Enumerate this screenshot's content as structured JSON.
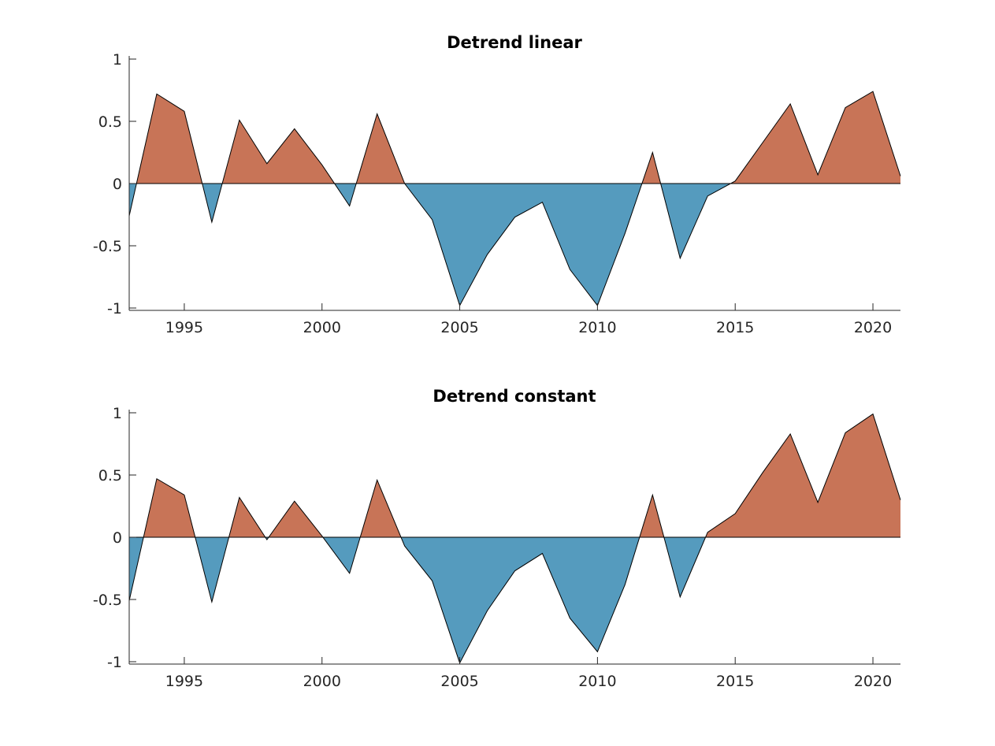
{
  "colors": {
    "positive": "#c87457",
    "negative": "#559bbe"
  },
  "chart_data": [
    {
      "type": "area",
      "title": "Detrend linear",
      "xlabel": "",
      "ylabel": "",
      "xlim": [
        1993,
        2021
      ],
      "ylim": [
        -1,
        1
      ],
      "xticks": [
        1995,
        2000,
        2005,
        2010,
        2015,
        2020
      ],
      "yticks": [
        -1,
        -0.5,
        0,
        0.5,
        1
      ],
      "ytick_labels": [
        "-1",
        "-0.5",
        "0",
        "0.5",
        "1"
      ],
      "x": [
        1993,
        1994,
        1995,
        1996,
        1997,
        1998,
        1999,
        2000,
        2001,
        2002,
        2003,
        2004,
        2005,
        2006,
        2007,
        2008,
        2009,
        2010,
        2011,
        2012,
        2013,
        2014,
        2015,
        2016,
        2017,
        2018,
        2019,
        2020,
        2021
      ],
      "y": [
        -0.26,
        0.72,
        0.58,
        -0.31,
        0.51,
        0.16,
        0.44,
        0.15,
        -0.18,
        0.56,
        0.0,
        -0.29,
        -0.98,
        -0.57,
        -0.27,
        -0.15,
        -0.69,
        -0.98,
        -0.4,
        0.25,
        -0.6,
        -0.1,
        0.02,
        0.33,
        0.64,
        0.07,
        0.61,
        0.74,
        0.06
      ],
      "grid": false
    },
    {
      "type": "area",
      "title": "Detrend constant",
      "xlabel": "",
      "ylabel": "",
      "xlim": [
        1993,
        2021
      ],
      "ylim": [
        -1,
        1
      ],
      "xticks": [
        1995,
        2000,
        2005,
        2010,
        2015,
        2020
      ],
      "yticks": [
        -1,
        -0.5,
        0,
        0.5,
        1
      ],
      "ytick_labels": [
        "-1",
        "-0.5",
        "0",
        "0.5",
        "1"
      ],
      "x": [
        1993,
        1994,
        1995,
        1996,
        1997,
        1998,
        1999,
        2000,
        2001,
        2002,
        2003,
        2004,
        2005,
        2006,
        2007,
        2008,
        2009,
        2010,
        2011,
        2012,
        2013,
        2014,
        2015,
        2016,
        2017,
        2018,
        2019,
        2020,
        2021
      ],
      "y": [
        -0.51,
        0.47,
        0.34,
        -0.52,
        0.32,
        -0.02,
        0.29,
        0.01,
        -0.29,
        0.46,
        -0.07,
        -0.35,
        -1.01,
        -0.59,
        -0.27,
        -0.13,
        -0.65,
        -0.92,
        -0.38,
        0.34,
        -0.48,
        0.04,
        0.19,
        0.52,
        0.83,
        0.28,
        0.84,
        0.99,
        0.3
      ],
      "grid": false
    }
  ]
}
